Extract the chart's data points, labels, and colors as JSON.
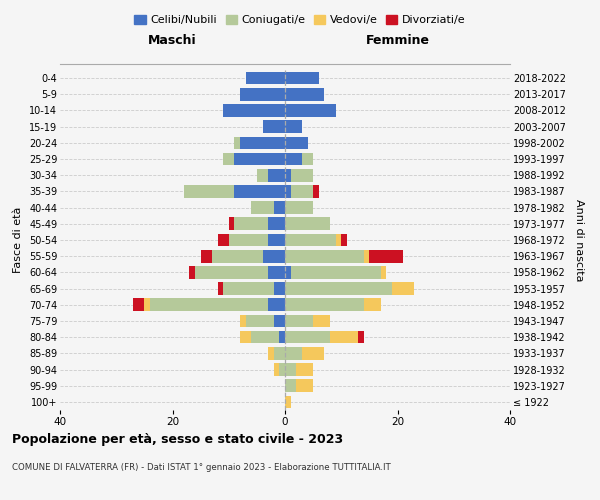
{
  "age_groups": [
    "100+",
    "95-99",
    "90-94",
    "85-89",
    "80-84",
    "75-79",
    "70-74",
    "65-69",
    "60-64",
    "55-59",
    "50-54",
    "45-49",
    "40-44",
    "35-39",
    "30-34",
    "25-29",
    "20-24",
    "15-19",
    "10-14",
    "5-9",
    "0-4"
  ],
  "birth_years": [
    "≤ 1922",
    "1923-1927",
    "1928-1932",
    "1933-1937",
    "1938-1942",
    "1943-1947",
    "1948-1952",
    "1953-1957",
    "1958-1962",
    "1963-1967",
    "1968-1972",
    "1973-1977",
    "1978-1982",
    "1983-1987",
    "1988-1992",
    "1993-1997",
    "1998-2002",
    "2003-2007",
    "2008-2012",
    "2013-2017",
    "2018-2022"
  ],
  "colors": {
    "celibe": "#4472c4",
    "coniugato": "#b5c99a",
    "vedovo": "#f5c85c",
    "divorziato": "#cc1122"
  },
  "males": {
    "celibe": [
      0,
      0,
      0,
      0,
      1,
      2,
      3,
      2,
      3,
      4,
      3,
      3,
      2,
      9,
      3,
      9,
      8,
      4,
      11,
      8,
      7
    ],
    "coniugato": [
      0,
      0,
      1,
      2,
      5,
      5,
      21,
      9,
      13,
      9,
      7,
      6,
      4,
      9,
      2,
      2,
      1,
      0,
      0,
      0,
      0
    ],
    "vedovo": [
      0,
      0,
      1,
      1,
      2,
      1,
      1,
      0,
      0,
      0,
      0,
      0,
      0,
      0,
      0,
      0,
      0,
      0,
      0,
      0,
      0
    ],
    "divorziato": [
      0,
      0,
      0,
      0,
      0,
      0,
      2,
      1,
      1,
      2,
      2,
      1,
      0,
      0,
      0,
      0,
      0,
      0,
      0,
      0,
      0
    ]
  },
  "females": {
    "nubile": [
      0,
      0,
      0,
      0,
      0,
      0,
      0,
      0,
      1,
      0,
      0,
      0,
      0,
      1,
      1,
      3,
      4,
      3,
      9,
      7,
      6
    ],
    "coniugata": [
      0,
      2,
      2,
      3,
      8,
      5,
      14,
      19,
      16,
      14,
      9,
      8,
      5,
      4,
      4,
      2,
      0,
      0,
      0,
      0,
      0
    ],
    "vedova": [
      1,
      3,
      3,
      4,
      5,
      3,
      3,
      4,
      1,
      1,
      1,
      0,
      0,
      0,
      0,
      0,
      0,
      0,
      0,
      0,
      0
    ],
    "divorziata": [
      0,
      0,
      0,
      0,
      1,
      0,
      0,
      0,
      0,
      6,
      1,
      0,
      0,
      1,
      0,
      0,
      0,
      0,
      0,
      0,
      0
    ]
  },
  "xlim": 40,
  "title": "Popolazione per età, sesso e stato civile - 2023",
  "subtitle": "COMUNE DI FALVATERRA (FR) - Dati ISTAT 1° gennaio 2023 - Elaborazione TUTTITALIA.IT",
  "ylabel_left": "Fasce di età",
  "ylabel_right": "Anni di nascita",
  "xlabel_left": "Maschi",
  "xlabel_right": "Femmine",
  "background_color": "#f5f5f5",
  "legend_labels": [
    "Celibi/Nubili",
    "Coniugati/e",
    "Vedovi/e",
    "Divorziati/e"
  ]
}
